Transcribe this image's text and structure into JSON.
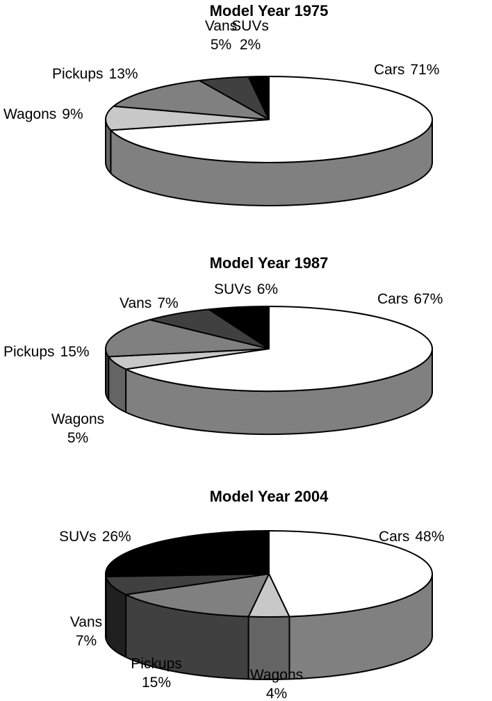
{
  "chart_data": [
    {
      "type": "pie",
      "title": "Model Year 1975",
      "categories": [
        "Cars",
        "Wagons",
        "Pickups",
        "Vans",
        "SUVs"
      ],
      "values": [
        71,
        9,
        13,
        5,
        2
      ],
      "value_labels": [
        "71%",
        "9%",
        "13%",
        "5%",
        "2%"
      ],
      "colors": [
        "#ffffff",
        "#c8c8c8",
        "#808080",
        "#404040",
        "#000000"
      ]
    },
    {
      "type": "pie",
      "title": "Model Year 1987",
      "categories": [
        "Cars",
        "Wagons",
        "Pickups",
        "Vans",
        "SUVs"
      ],
      "values": [
        67,
        5,
        15,
        7,
        6
      ],
      "value_labels": [
        "67%",
        "5%",
        "15%",
        "7%",
        "6%"
      ],
      "colors": [
        "#ffffff",
        "#c8c8c8",
        "#808080",
        "#404040",
        "#000000"
      ]
    },
    {
      "type": "pie",
      "title": "Model Year 2004",
      "categories": [
        "Cars",
        "Wagons",
        "Pickups",
        "Vans",
        "SUVs"
      ],
      "values": [
        48,
        4,
        15,
        7,
        26
      ],
      "value_labels": [
        "48%",
        "4%",
        "15%",
        "7%",
        "26%"
      ],
      "colors": [
        "#ffffff",
        "#c8c8c8",
        "#808080",
        "#404040",
        "#000000"
      ]
    }
  ]
}
